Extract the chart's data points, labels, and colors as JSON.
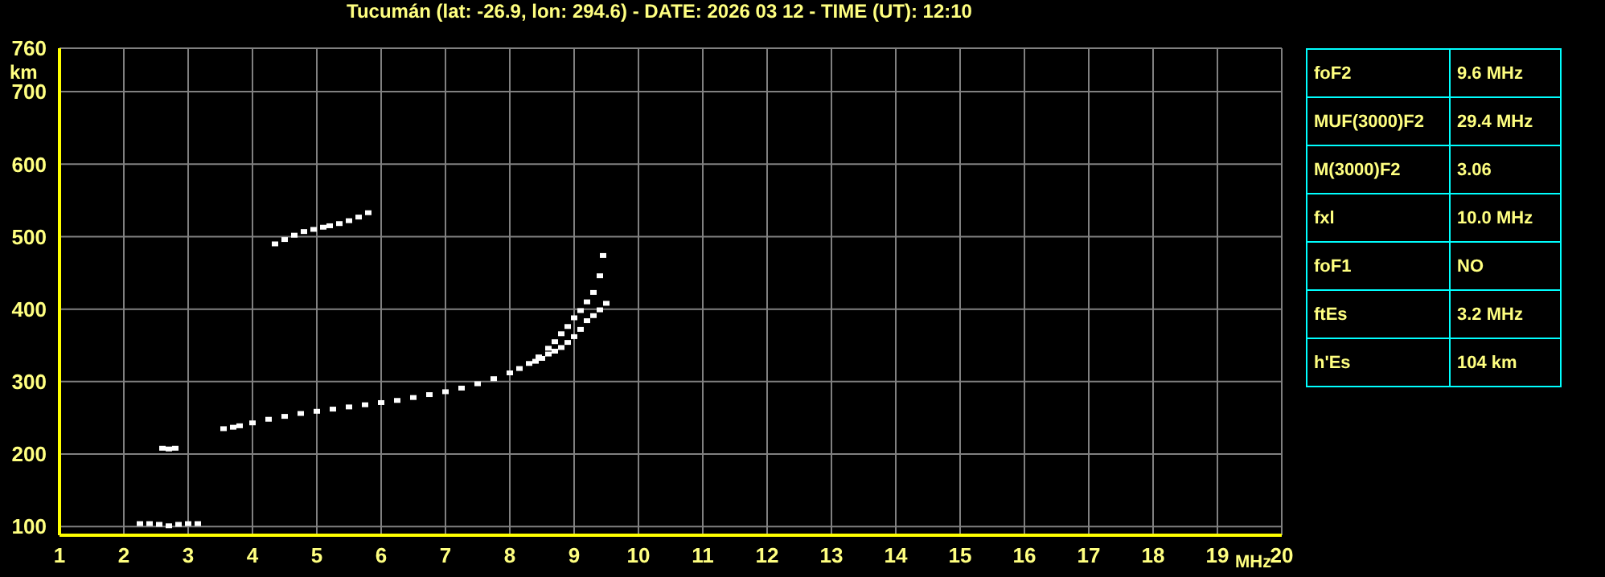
{
  "chart_data": [
    {
      "type": "scatter",
      "title": "Tucumán (lat: -26.9, lon: 294.6) - DATE: 2026 03 12 - TIME (UT): 12:10",
      "xlabel": "MHz",
      "ylabel": "km",
      "marker": "square",
      "grid": true,
      "xlim": [
        1,
        20
      ],
      "xticks": [
        1,
        2,
        3,
        4,
        5,
        6,
        7,
        8,
        9,
        10,
        11,
        12,
        13,
        14,
        15,
        16,
        17,
        18,
        19,
        20
      ],
      "ylim": [
        88,
        760
      ],
      "yticks": [
        100,
        200,
        300,
        400,
        500,
        600,
        700,
        760
      ],
      "series": [
        {
          "color": "#ffffff",
          "x": [
            3.55,
            3.7,
            3.8,
            4.0,
            4.25,
            4.5,
            4.75,
            5.0,
            5.25,
            5.5,
            5.75,
            6.0,
            6.25,
            6.5,
            6.75,
            7.0,
            7.25,
            7.5,
            7.75,
            8.0,
            8.15,
            8.3,
            8.45,
            8.6,
            8.7,
            8.8,
            8.9,
            9.0,
            9.1,
            9.2,
            9.3,
            9.4,
            9.45
          ],
          "values": [
            235,
            237,
            239,
            243,
            248,
            252,
            256,
            259,
            262,
            265,
            268,
            271,
            274,
            278,
            282,
            286,
            291,
            297,
            304,
            312,
            318,
            325,
            334,
            346,
            355,
            366,
            376,
            388,
            398,
            410,
            423,
            446,
            474
          ]
        },
        {
          "color": "#ffffff",
          "x": [
            8.4,
            8.5,
            8.6,
            8.7,
            8.8,
            8.9,
            9.0,
            9.1,
            9.2,
            9.3,
            9.4,
            9.5
          ],
          "values": [
            328,
            332,
            338,
            342,
            347,
            354,
            362,
            372,
            384,
            391,
            399,
            408
          ]
        },
        {
          "color": "#ffffff",
          "x": [
            4.35,
            4.5,
            4.65,
            4.8,
            4.95,
            5.1,
            5.2,
            5.35,
            5.5,
            5.65,
            5.8
          ],
          "values": [
            490,
            496,
            502,
            507,
            510,
            513,
            515,
            518,
            522,
            527,
            533
          ]
        },
        {
          "color": "#ffffff",
          "x": [
            2.25,
            2.4,
            2.55,
            2.7,
            2.85,
            3.0,
            3.15
          ],
          "values": [
            104,
            104,
            103,
            101,
            103,
            104,
            104
          ]
        },
        {
          "color": "#ffffff",
          "x": [
            2.6,
            2.7,
            2.8
          ],
          "values": [
            208,
            207,
            208
          ]
        }
      ]
    },
    {
      "type": "other",
      "annotations": [
        "foF2",
        "9.6 MHz",
        "MUF(3000)F2",
        "29.4 MHz",
        "M(3000)F2",
        "3.06",
        "fxl",
        "10.0 MHz",
        "foF1",
        "NO",
        "ftEs",
        "3.2 MHz",
        "h'Es",
        "104 km"
      ]
    }
  ]
}
